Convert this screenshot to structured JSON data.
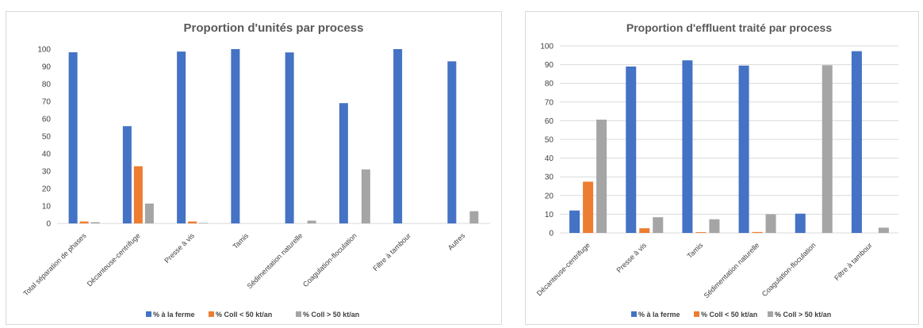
{
  "chart_data": [
    {
      "type": "bar",
      "title": "Proportion d'unités par process",
      "categories": [
        "Total séparation de phases",
        "Décanteuse-centrifuge",
        "Presse à vis",
        "Tamis",
        "Sédimentation naturelle",
        "Coagulation-floculation",
        "Filtre à tambour",
        "Autres"
      ],
      "series": [
        {
          "name": "% à la ferme",
          "color": "#4472c4",
          "values": [
            98.2,
            55.8,
            98.6,
            100,
            98.1,
            69,
            100,
            93
          ]
        },
        {
          "name": "% Coll < 50 kt/an",
          "color": "#ed7d31",
          "values": [
            1.1,
            32.8,
            1.1,
            0,
            0,
            0,
            0,
            0
          ]
        },
        {
          "name": "% Coll > 50 kt/an",
          "color": "#a5a5a5",
          "values": [
            0.7,
            11.4,
            0.3,
            0,
            1.6,
            31,
            0,
            7
          ]
        }
      ],
      "yticks": [
        0,
        10,
        20,
        30,
        40,
        50,
        60,
        70,
        80,
        90,
        100
      ],
      "ylim": [
        0,
        100
      ],
      "grid": false,
      "legend": "bottom"
    },
    {
      "type": "bar",
      "title": "Proportion d'effluent traité par process",
      "categories": [
        "Décanteuse-centrifuge",
        "Presse à vis",
        "Tamis",
        "Sédimentation naturelle",
        "Coagulation-floculation",
        "Filtre à tambour"
      ],
      "series": [
        {
          "name": "% à la ferme",
          "color": "#4472c4",
          "values": [
            12,
            89,
            92.3,
            89.5,
            10.3,
            97.2
          ]
        },
        {
          "name": "% Coll < 50 kt/an",
          "color": "#ed7d31",
          "values": [
            27.4,
            2.5,
            0.4,
            0.5,
            0,
            0
          ]
        },
        {
          "name": "% Coll > 50 kt/an",
          "color": "#a5a5a5",
          "values": [
            60.6,
            8.4,
            7.3,
            10,
            89.7,
            2.8
          ]
        }
      ],
      "yticks": [
        0,
        10,
        20,
        30,
        40,
        50,
        60,
        70,
        80,
        90,
        100
      ],
      "ylim": [
        0,
        100
      ],
      "grid": true,
      "legend": "bottom"
    }
  ]
}
